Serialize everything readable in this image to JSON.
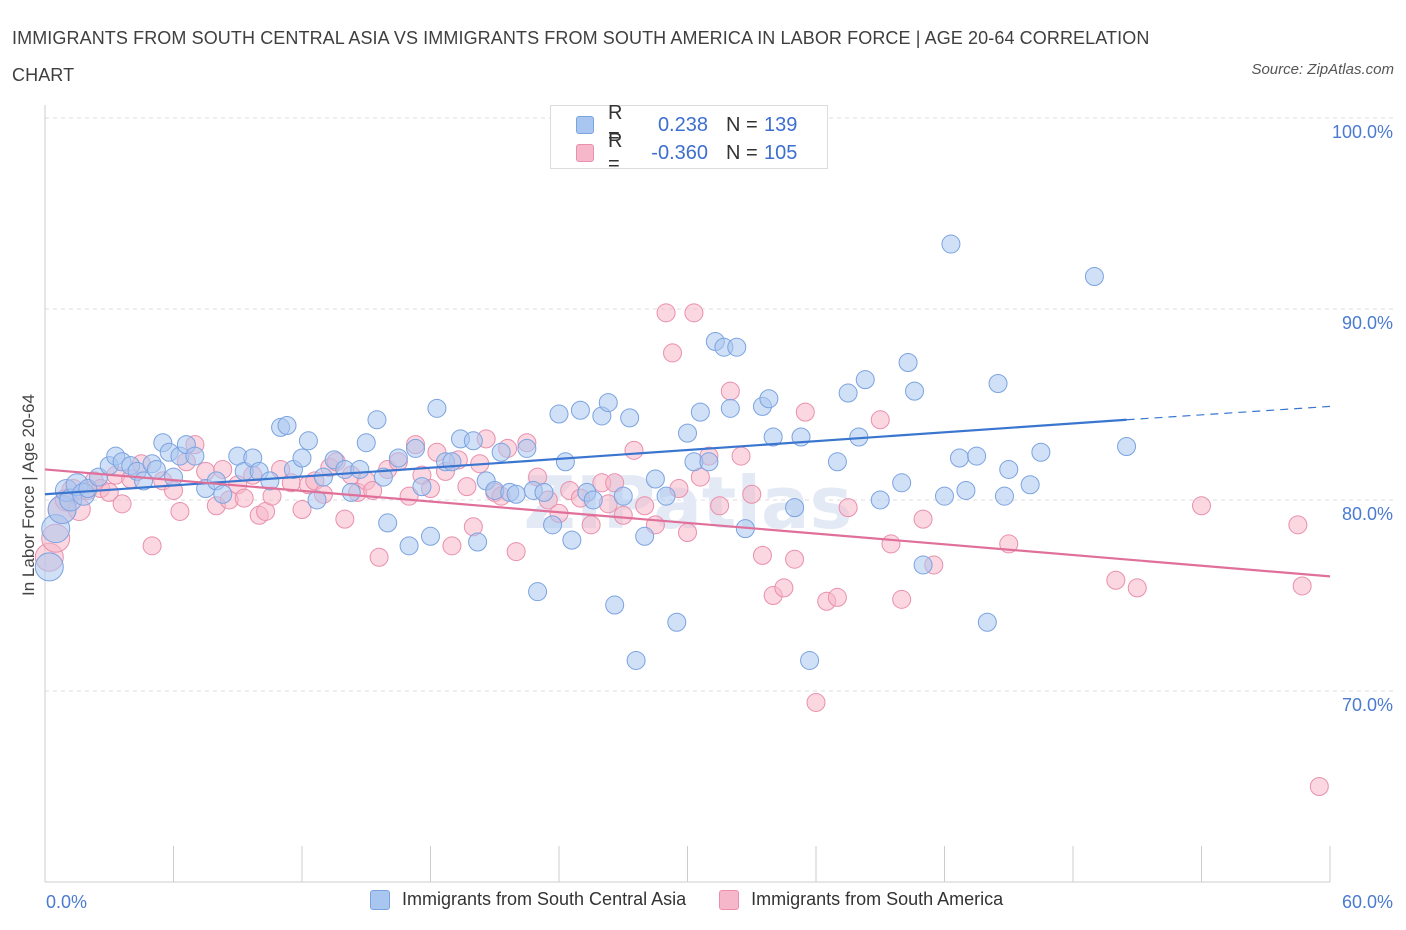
{
  "title": "IMMIGRANTS FROM SOUTH CENTRAL ASIA VS IMMIGRANTS FROM SOUTH AMERICA IN LABOR FORCE | AGE 20-64 CORRELATION CHART",
  "source": "Source: ZipAtlas.com",
  "watermark": "ZIPatlas",
  "legend": {
    "rows": [
      {
        "r_label": "R =",
        "r_value": "0.238",
        "n_label": "N =",
        "n_value": "139"
      },
      {
        "r_label": "R =",
        "r_value": "-0.360",
        "n_label": "N =",
        "n_value": "105"
      }
    ]
  },
  "colors": {
    "blue_fill": "#a9c6f0",
    "blue_stroke": "#7ba3e0",
    "blue_line": "#3a76cf",
    "pink_fill": "#f5b7c9",
    "pink_stroke": "#ea90ad",
    "pink_line": "#e07099",
    "grid": "#dddddd",
    "tick_label": "#4a7bd0"
  },
  "chart_data": {
    "type": "scatter",
    "title": "IMMIGRANTS FROM SOUTH CENTRAL ASIA VS IMMIGRANTS FROM SOUTH AMERICA IN LABOR FORCE | AGE 20-64 CORRELATION CHART",
    "xlabel": "",
    "ylabel": "In Labor Force | Age 20-64",
    "xlim": [
      0,
      60
    ],
    "ylim": [
      60,
      100
    ],
    "x_tick_labels": [
      {
        "value": 0,
        "label": "0.0%"
      },
      {
        "value": 60,
        "label": "60.0%"
      }
    ],
    "y_tick_labels": [
      {
        "value": 100,
        "label": "100.0%"
      },
      {
        "value": 90,
        "label": "90.0%"
      },
      {
        "value": 80,
        "label": "80.0%"
      },
      {
        "value": 70,
        "label": "70.0%"
      }
    ],
    "x_minor_ticks": [
      0,
      6,
      12,
      18,
      24,
      30,
      36,
      42,
      48,
      54,
      60
    ],
    "series": [
      {
        "name": "Immigrants from South Central Asia",
        "color": "blue",
        "trend": {
          "x0": 0,
          "y0": 80.3,
          "x1": 50.5,
          "y1": 84.2,
          "dash_x1": 60,
          "dash_y1": 84.9
        },
        "points": [
          [
            0.2,
            76.5
          ],
          [
            0.5,
            78.5
          ],
          [
            0.8,
            79.5
          ],
          [
            1.0,
            80.5
          ],
          [
            1.2,
            80.0
          ],
          [
            1.5,
            80.8
          ],
          [
            1.8,
            80.3
          ],
          [
            2.0,
            80.6
          ],
          [
            2.5,
            81.2
          ],
          [
            3.0,
            81.8
          ],
          [
            3.3,
            82.3
          ],
          [
            3.6,
            82.0
          ],
          [
            4.0,
            81.8
          ],
          [
            4.3,
            81.5
          ],
          [
            4.6,
            81.0
          ],
          [
            5.0,
            81.9
          ],
          [
            5.2,
            81.6
          ],
          [
            5.5,
            83.0
          ],
          [
            5.8,
            82.5
          ],
          [
            6.0,
            81.2
          ],
          [
            6.3,
            82.3
          ],
          [
            6.6,
            82.9
          ],
          [
            7.0,
            82.3
          ],
          [
            7.5,
            80.6
          ],
          [
            8.0,
            81.0
          ],
          [
            8.3,
            80.3
          ],
          [
            9.0,
            82.3
          ],
          [
            9.3,
            81.5
          ],
          [
            9.7,
            82.2
          ],
          [
            10.0,
            81.5
          ],
          [
            10.5,
            81.0
          ],
          [
            11.0,
            83.8
          ],
          [
            11.3,
            83.9
          ],
          [
            11.6,
            81.6
          ],
          [
            12.0,
            82.2
          ],
          [
            12.3,
            83.1
          ],
          [
            12.7,
            80.0
          ],
          [
            13.0,
            81.2
          ],
          [
            13.5,
            82.1
          ],
          [
            14.0,
            81.6
          ],
          [
            14.3,
            80.4
          ],
          [
            14.7,
            81.6
          ],
          [
            15.0,
            83.0
          ],
          [
            15.5,
            84.2
          ],
          [
            15.8,
            81.2
          ],
          [
            16.0,
            78.8
          ],
          [
            16.5,
            82.2
          ],
          [
            17.0,
            77.6
          ],
          [
            17.3,
            82.7
          ],
          [
            17.6,
            80.7
          ],
          [
            18.0,
            78.1
          ],
          [
            18.3,
            84.8
          ],
          [
            18.7,
            82.0
          ],
          [
            19.0,
            82.0
          ],
          [
            19.4,
            83.2
          ],
          [
            20.0,
            83.1
          ],
          [
            20.2,
            77.8
          ],
          [
            20.6,
            81.0
          ],
          [
            21.0,
            80.5
          ],
          [
            21.3,
            82.5
          ],
          [
            21.7,
            80.4
          ],
          [
            22.0,
            80.3
          ],
          [
            22.5,
            82.7
          ],
          [
            22.8,
            80.5
          ],
          [
            23.0,
            75.2
          ],
          [
            23.3,
            80.4
          ],
          [
            23.7,
            78.7
          ],
          [
            24.0,
            84.5
          ],
          [
            24.3,
            82.0
          ],
          [
            24.6,
            77.9
          ],
          [
            25.0,
            84.7
          ],
          [
            25.3,
            80.4
          ],
          [
            25.6,
            80.0
          ],
          [
            26.0,
            84.4
          ],
          [
            26.3,
            85.1
          ],
          [
            26.6,
            74.5
          ],
          [
            27.0,
            80.2
          ],
          [
            27.3,
            84.3
          ],
          [
            27.6,
            71.6
          ],
          [
            28.0,
            78.1
          ],
          [
            28.5,
            81.1
          ],
          [
            29.0,
            80.2
          ],
          [
            29.5,
            73.6
          ],
          [
            30.0,
            83.5
          ],
          [
            30.3,
            82.0
          ],
          [
            30.6,
            84.6
          ],
          [
            31.0,
            82.0
          ],
          [
            31.3,
            88.3
          ],
          [
            31.7,
            88.0
          ],
          [
            32.0,
            84.8
          ],
          [
            32.3,
            88.0
          ],
          [
            32.7,
            78.5
          ],
          [
            33.5,
            84.9
          ],
          [
            33.8,
            85.3
          ],
          [
            34.0,
            83.3
          ],
          [
            35.0,
            79.6
          ],
          [
            35.3,
            83.3
          ],
          [
            35.7,
            71.6
          ],
          [
            37.0,
            82.0
          ],
          [
            37.5,
            85.6
          ],
          [
            38.0,
            83.3
          ],
          [
            38.3,
            86.3
          ],
          [
            39.0,
            80.0
          ],
          [
            40.0,
            80.9
          ],
          [
            40.3,
            87.2
          ],
          [
            40.6,
            85.7
          ],
          [
            41.0,
            76.6
          ],
          [
            42.0,
            80.2
          ],
          [
            42.3,
            93.4
          ],
          [
            42.7,
            82.2
          ],
          [
            43.0,
            80.5
          ],
          [
            43.5,
            82.3
          ],
          [
            44.0,
            73.6
          ],
          [
            44.5,
            86.1
          ],
          [
            44.8,
            80.2
          ],
          [
            45.0,
            81.6
          ],
          [
            46.0,
            80.8
          ],
          [
            46.5,
            82.5
          ],
          [
            49.0,
            91.7
          ],
          [
            50.5,
            82.8
          ]
        ]
      },
      {
        "name": "Immigrants from South America",
        "color": "pink",
        "trend": {
          "x0": 0,
          "y0": 81.6,
          "x1": 60,
          "y1": 76.0
        },
        "points": [
          [
            0.2,
            77.0
          ],
          [
            0.5,
            78.0
          ],
          [
            0.8,
            79.5
          ],
          [
            1.0,
            80.0
          ],
          [
            1.3,
            80.5
          ],
          [
            1.6,
            79.5
          ],
          [
            2.0,
            80.5
          ],
          [
            2.3,
            81.0
          ],
          [
            2.6,
            80.6
          ],
          [
            3.0,
            80.4
          ],
          [
            3.3,
            81.3
          ],
          [
            3.6,
            79.8
          ],
          [
            4.0,
            81.1
          ],
          [
            4.5,
            81.9
          ],
          [
            5.0,
            77.6
          ],
          [
            5.5,
            81.0
          ],
          [
            6.0,
            80.5
          ],
          [
            6.3,
            79.4
          ],
          [
            6.6,
            82.0
          ],
          [
            7.0,
            82.9
          ],
          [
            7.5,
            81.5
          ],
          [
            8.0,
            79.7
          ],
          [
            8.3,
            81.6
          ],
          [
            8.6,
            80.0
          ],
          [
            9.0,
            80.8
          ],
          [
            9.3,
            80.1
          ],
          [
            9.7,
            81.3
          ],
          [
            10.0,
            79.2
          ],
          [
            10.3,
            79.4
          ],
          [
            10.6,
            80.2
          ],
          [
            11.0,
            81.6
          ],
          [
            11.5,
            80.9
          ],
          [
            12.0,
            79.5
          ],
          [
            12.3,
            80.8
          ],
          [
            12.6,
            81.0
          ],
          [
            13.0,
            80.3
          ],
          [
            13.3,
            81.7
          ],
          [
            13.6,
            82.0
          ],
          [
            14.0,
            79.0
          ],
          [
            14.3,
            81.3
          ],
          [
            14.6,
            80.4
          ],
          [
            15.0,
            81.0
          ],
          [
            15.3,
            80.5
          ],
          [
            15.6,
            77.0
          ],
          [
            16.0,
            81.6
          ],
          [
            16.5,
            82.0
          ],
          [
            17.0,
            80.2
          ],
          [
            17.3,
            82.9
          ],
          [
            17.6,
            81.3
          ],
          [
            18.0,
            80.6
          ],
          [
            18.3,
            82.5
          ],
          [
            18.7,
            81.5
          ],
          [
            19.0,
            77.6
          ],
          [
            19.3,
            82.1
          ],
          [
            19.7,
            80.7
          ],
          [
            20.0,
            78.6
          ],
          [
            20.3,
            81.9
          ],
          [
            20.6,
            83.2
          ],
          [
            21.0,
            80.4
          ],
          [
            21.3,
            80.2
          ],
          [
            21.6,
            82.7
          ],
          [
            22.0,
            77.3
          ],
          [
            22.5,
            83.0
          ],
          [
            23.0,
            81.2
          ],
          [
            23.5,
            80.0
          ],
          [
            24.0,
            79.3
          ],
          [
            24.5,
            80.5
          ],
          [
            25.0,
            80.1
          ],
          [
            25.5,
            78.7
          ],
          [
            26.0,
            80.9
          ],
          [
            26.3,
            79.8
          ],
          [
            26.6,
            80.9
          ],
          [
            27.0,
            79.2
          ],
          [
            27.5,
            82.6
          ],
          [
            28.0,
            79.7
          ],
          [
            28.5,
            78.7
          ],
          [
            29.0,
            89.8
          ],
          [
            29.3,
            87.7
          ],
          [
            29.6,
            80.6
          ],
          [
            30.0,
            78.3
          ],
          [
            30.3,
            89.8
          ],
          [
            30.6,
            81.2
          ],
          [
            31.0,
            82.3
          ],
          [
            31.5,
            79.7
          ],
          [
            32.0,
            85.7
          ],
          [
            32.5,
            82.3
          ],
          [
            33.0,
            80.3
          ],
          [
            33.5,
            77.1
          ],
          [
            34.0,
            75.0
          ],
          [
            34.5,
            75.4
          ],
          [
            35.0,
            76.9
          ],
          [
            35.5,
            84.6
          ],
          [
            36.0,
            69.4
          ],
          [
            36.5,
            74.7
          ],
          [
            37.0,
            74.9
          ],
          [
            37.5,
            79.6
          ],
          [
            39.0,
            84.2
          ],
          [
            39.5,
            77.7
          ],
          [
            40.0,
            74.8
          ],
          [
            41.0,
            79.0
          ],
          [
            41.5,
            76.6
          ],
          [
            45.0,
            77.7
          ],
          [
            50.0,
            75.8
          ],
          [
            51.0,
            75.4
          ],
          [
            54.0,
            79.7
          ],
          [
            58.5,
            78.7
          ],
          [
            58.7,
            75.5
          ],
          [
            59.5,
            65.0
          ]
        ]
      }
    ]
  }
}
